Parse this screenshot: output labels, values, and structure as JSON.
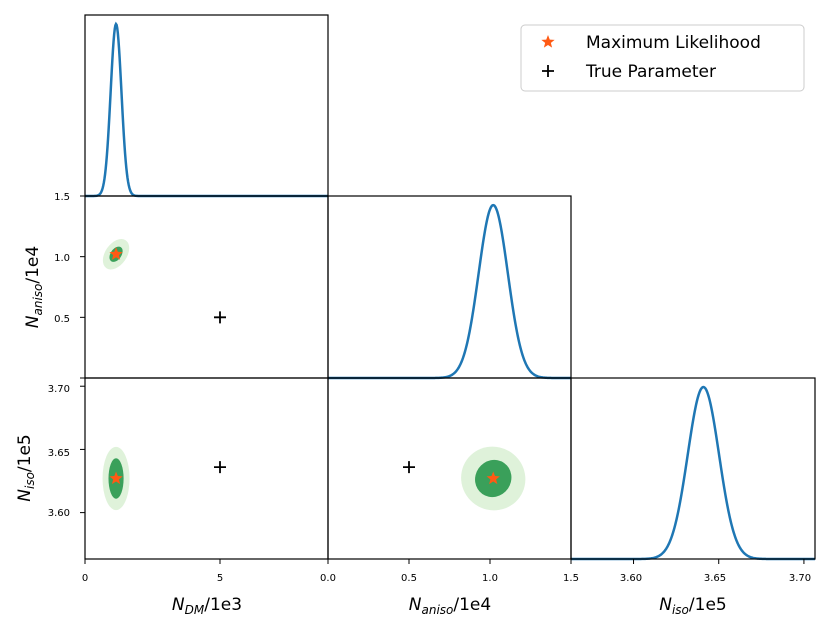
{
  "chart_data": {
    "type": "corner",
    "colors": {
      "curve": "#1f77b4",
      "ml_marker": "#ff5a14",
      "true_marker": "#000000",
      "contour_inner": "#3aa05a",
      "contour_outer": "#dff2da"
    },
    "legend": {
      "position": "top-right",
      "entries": [
        {
          "label": "Maximum Likelihood",
          "marker": "star"
        },
        {
          "label": "True Parameter",
          "marker": "plus"
        }
      ]
    },
    "parameters": [
      {
        "name": "N_DM",
        "label_main": "N",
        "label_sub": "DM",
        "label_suffix": "/1e3",
        "range": [
          0,
          9
        ],
        "ticks": [
          0,
          5
        ],
        "tick_labels": [
          "0",
          "5"
        ]
      },
      {
        "name": "N_aniso",
        "label_main": "N",
        "label_sub": "aniso",
        "label_suffix": "/1e4",
        "range": [
          0,
          1.5
        ],
        "ticks": [
          0.0,
          0.5,
          1.0,
          1.5
        ],
        "tick_labels": [
          "0.0",
          "0.5",
          "1.0",
          "1.5"
        ]
      },
      {
        "name": "N_iso",
        "label_main": "N",
        "label_sub": "iso",
        "label_suffix": "/1e5",
        "range": [
          3.5633,
          3.7065
        ],
        "ticks": [
          3.6,
          3.65,
          3.7
        ],
        "tick_labels": [
          "3.60",
          "3.65",
          "3.70"
        ]
      }
    ],
    "marginals": [
      {
        "param": "N_DM",
        "mean": 1.15,
        "sigma": 0.2
      },
      {
        "param": "N_aniso",
        "mean": 1.02,
        "sigma": 0.09
      },
      {
        "param": "N_iso",
        "mean": 3.641,
        "sigma": 0.0092
      }
    ],
    "max_likelihood": {
      "N_DM": 1.15,
      "N_aniso": 1.02,
      "N_iso": 3.627
    },
    "true_parameter": {
      "N_DM": 5.0,
      "N_aniso": 0.5,
      "N_iso": 3.636
    },
    "contours": [
      {
        "x": "N_DM",
        "y": "N_aniso",
        "center": [
          1.15,
          1.02
        ],
        "inner_half_widths": [
          0.2,
          0.07
        ],
        "outer_half_widths": [
          0.4,
          0.14
        ]
      },
      {
        "x": "N_DM",
        "y": "N_iso",
        "center": [
          1.15,
          3.627
        ],
        "inner_half_widths": [
          0.28,
          0.016
        ],
        "outer_half_widths": [
          0.5,
          0.025
        ]
      },
      {
        "x": "N_aniso",
        "y": "N_iso",
        "center": [
          1.02,
          3.627
        ],
        "inner_half_widths": [
          0.11,
          0.015
        ],
        "outer_half_widths": [
          0.2,
          0.025
        ]
      }
    ]
  }
}
